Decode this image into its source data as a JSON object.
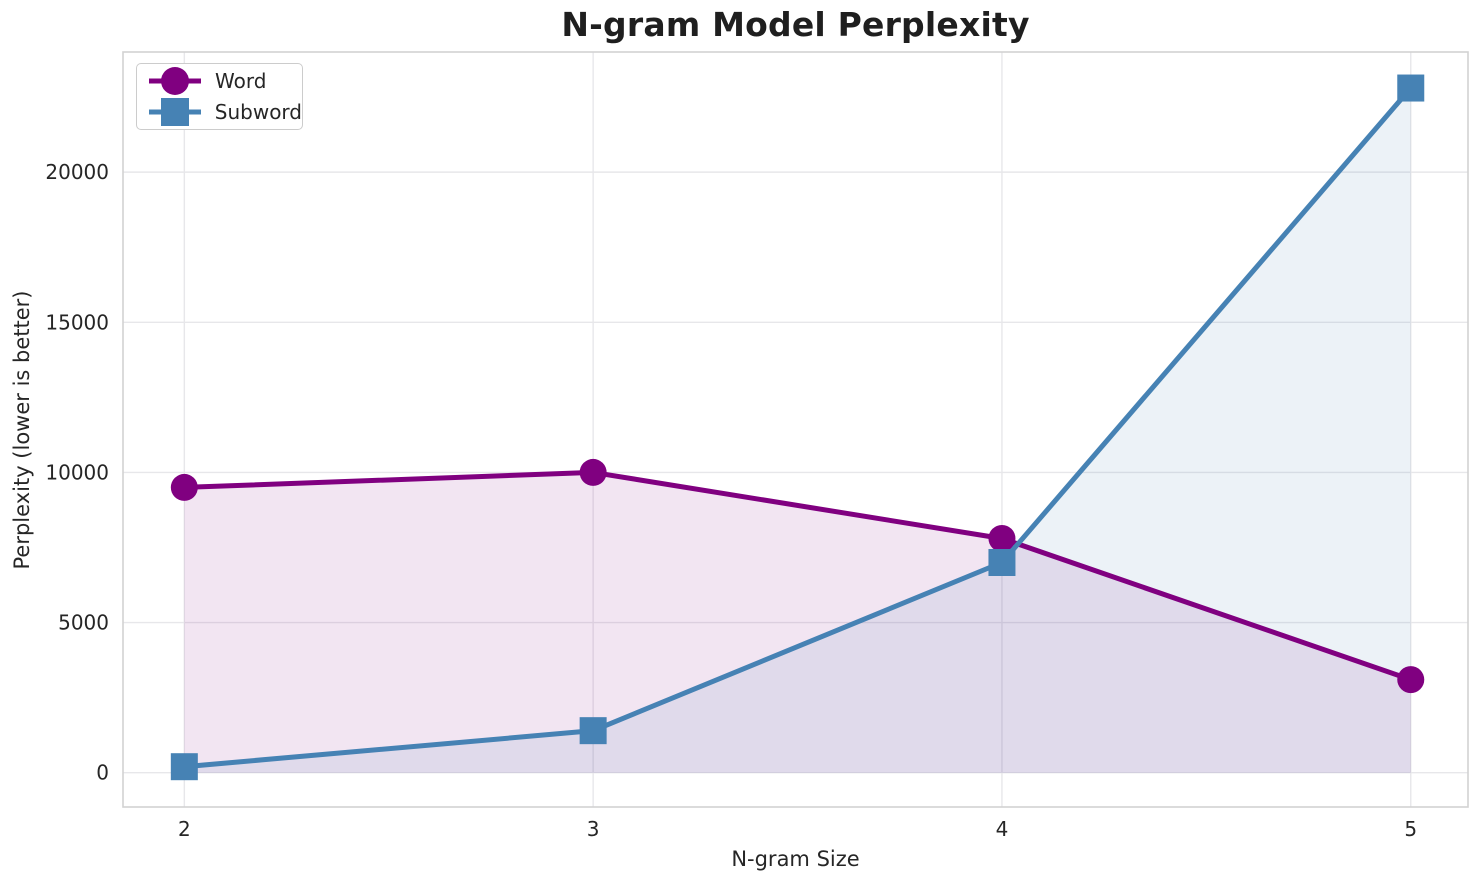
{
  "chart_data": {
    "type": "line",
    "title": "N-gram Model Perplexity",
    "xlabel": "N-gram Size",
    "ylabel": "Perplexity (lower is better)",
    "x": [
      2,
      3,
      4,
      5
    ],
    "series": [
      {
        "name": "Word",
        "values": [
          9500,
          10000,
          7800,
          3100
        ],
        "color": "#800080",
        "marker": "circle",
        "fill_opacity": 0.1
      },
      {
        "name": "Subword",
        "values": [
          200,
          1400,
          7000,
          22800
        ],
        "color": "#4682B4",
        "marker": "square",
        "fill_opacity": 0.1
      }
    ],
    "xticks": [
      2,
      3,
      4,
      5
    ],
    "yticks": [
      0,
      5000,
      10000,
      15000,
      20000
    ],
    "xlim": [
      1.85,
      5.14
    ],
    "ylim": [
      -1142,
      24000
    ],
    "grid": true,
    "area_fill": true,
    "fill_baseline": 0,
    "legend_position": "upper left"
  },
  "style": {
    "grid_color": "#e7e7ea",
    "spine_color": "#d2d2d2",
    "text_color": "#262626",
    "line_width": 5,
    "marker_size": 27,
    "tick_font_size": 20,
    "background": "#ffffff"
  }
}
